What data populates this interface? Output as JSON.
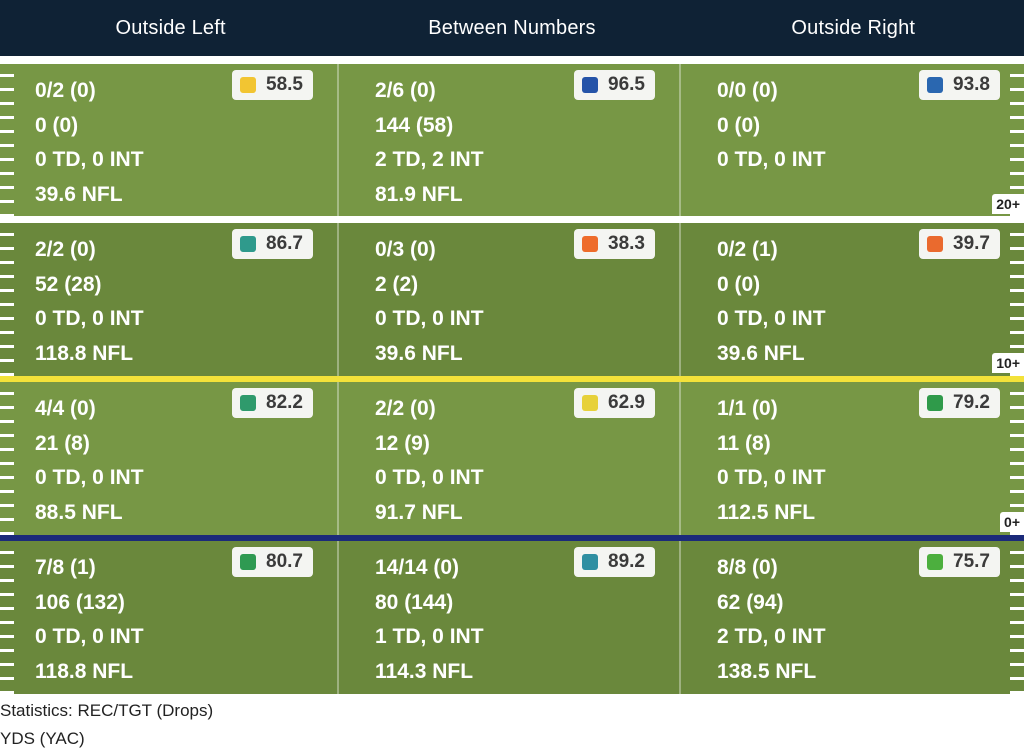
{
  "columns": [
    "Outside Left",
    "Between Numbers",
    "Outside Right"
  ],
  "yard_markers": [
    "20+",
    "10+",
    "0+"
  ],
  "legend": [
    "Statistics: REC/TGT (Drops)",
    "YDS (YAC)"
  ],
  "rows": [
    [
      {
        "lines": [
          "0/2 (0)",
          "0 (0)",
          "0 TD, 0 INT",
          "39.6 NFL"
        ],
        "grade": "58.5",
        "color": "#f2c532"
      },
      {
        "lines": [
          "2/6 (0)",
          "144 (58)",
          "2 TD, 2 INT",
          "81.9 NFL"
        ],
        "grade": "96.5",
        "color": "#2554a8"
      },
      {
        "lines": [
          "0/0 (0)",
          "0 (0)",
          "0 TD, 0 INT",
          ""
        ],
        "grade": "93.8",
        "color": "#2a67b0"
      }
    ],
    [
      {
        "lines": [
          "2/2 (0)",
          "52 (28)",
          "0 TD, 0 INT",
          "118.8 NFL"
        ],
        "grade": "86.7",
        "color": "#2f9a8c"
      },
      {
        "lines": [
          "0/3 (0)",
          "2 (2)",
          "0 TD, 0 INT",
          "39.6 NFL"
        ],
        "grade": "38.3",
        "color": "#ee6c2b"
      },
      {
        "lines": [
          "0/2 (1)",
          "0 (0)",
          "0 TD, 0 INT",
          "39.6 NFL"
        ],
        "grade": "39.7",
        "color": "#ea6a2e"
      }
    ],
    [
      {
        "lines": [
          "4/4 (0)",
          "21 (8)",
          "0 TD, 0 INT",
          "88.5 NFL"
        ],
        "grade": "82.2",
        "color": "#2f9a6c"
      },
      {
        "lines": [
          "2/2 (0)",
          "12 (9)",
          "0 TD, 0 INT",
          "91.7 NFL"
        ],
        "grade": "62.9",
        "color": "#e7d13a"
      },
      {
        "lines": [
          "1/1 (0)",
          "11 (8)",
          "0 TD, 0 INT",
          "112.5 NFL"
        ],
        "grade": "79.2",
        "color": "#2f9a4a"
      }
    ],
    [
      {
        "lines": [
          "7/8 (1)",
          "106 (132)",
          "0 TD, 0 INT",
          "118.8 NFL"
        ],
        "grade": "80.7",
        "color": "#2f9a52"
      },
      {
        "lines": [
          "14/14 (0)",
          "80 (144)",
          "1 TD, 0 INT",
          "114.3 NFL"
        ],
        "grade": "89.2",
        "color": "#2f8fa2"
      },
      {
        "lines": [
          "8/8 (0)",
          "62 (94)",
          "2 TD, 0 INT",
          "138.5 NFL"
        ],
        "grade": "75.7",
        "color": "#4caf3e"
      }
    ]
  ]
}
